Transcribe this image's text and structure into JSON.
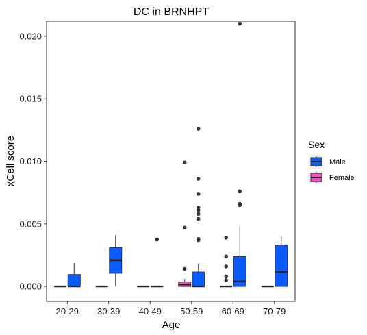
{
  "chart_data": {
    "type": "box",
    "title": "DC in BRNHPT",
    "xlabel": "Age",
    "ylabel": "xCell score",
    "categories": [
      "20-29",
      "30-39",
      "40-49",
      "50-59",
      "60-69",
      "70-79"
    ],
    "ylim": [
      -0.0012,
      0.0212
    ],
    "yticks": [
      0.0,
      0.005,
      0.01,
      0.015,
      0.02
    ],
    "ytick_labels": [
      "0.000",
      "0.005",
      "0.010",
      "0.015",
      "0.020"
    ],
    "grid": false,
    "legend": {
      "title": "Sex",
      "position": "right"
    },
    "series": [
      {
        "name": "Male",
        "color": "#0a5cff",
        "boxes": [
          {
            "category": "20-29",
            "whislo": 0.0,
            "q1": 0.0,
            "med": 0.0,
            "q3": 0.00095,
            "whishi": 0.00185,
            "fliers": []
          },
          {
            "category": "30-39",
            "whislo": 0.0,
            "q1": 0.00105,
            "med": 0.0021,
            "q3": 0.0031,
            "whishi": 0.0041,
            "fliers": []
          },
          {
            "category": "40-49",
            "whislo": 0.0,
            "q1": 0.0,
            "med": 0.0,
            "q3": 0.0,
            "whishi": 0.0,
            "fliers": [
              0.00375
            ]
          },
          {
            "category": "50-59",
            "whislo": 0.0,
            "q1": 0.0,
            "med": 0.0,
            "q3": 0.00115,
            "whishi": 0.0018,
            "fliers": [
              0.0126,
              0.0086,
              0.0074,
              0.0063,
              0.0061,
              0.0058,
              0.0054,
              0.0038,
              0.0037
            ]
          },
          {
            "category": "60-69",
            "whislo": 0.0,
            "q1": 0.0,
            "med": 0.0004,
            "q3": 0.0024,
            "whishi": 0.0049,
            "fliers": [
              0.021,
              0.0076,
              0.0066,
              0.0065
            ]
          },
          {
            "category": "70-79",
            "whislo": 0.0,
            "q1": 0.0,
            "med": 0.00115,
            "q3": 0.0033,
            "whishi": 0.004,
            "fliers": []
          }
        ]
      },
      {
        "name": "Female",
        "color": "#ff4fc8",
        "boxes": [
          {
            "category": "20-29",
            "whislo": 0.0,
            "q1": 0.0,
            "med": 0.0,
            "q3": 0.0,
            "whishi": 0.0,
            "fliers": []
          },
          {
            "category": "30-39",
            "whislo": 0.0,
            "q1": 0.0,
            "med": 0.0,
            "q3": 0.0,
            "whishi": 0.0,
            "fliers": []
          },
          {
            "category": "40-49",
            "whislo": 0.0,
            "q1": 0.0,
            "med": 0.0,
            "q3": 0.0,
            "whishi": 0.0,
            "fliers": []
          },
          {
            "category": "50-59",
            "whislo": 0.0,
            "q1": 0.0,
            "med": 0.00015,
            "q3": 0.00035,
            "whishi": 0.0006,
            "fliers": [
              0.0099,
              0.0047,
              0.0014
            ]
          },
          {
            "category": "60-69",
            "whislo": 0.0,
            "q1": 0.0,
            "med": 0.0,
            "q3": 0.0,
            "whishi": 0.0,
            "fliers": [
              0.0039,
              0.0024,
              0.0016,
              0.0008,
              0.0005
            ]
          },
          {
            "category": "70-79",
            "whislo": 0.0,
            "q1": 0.0,
            "med": 0.0,
            "q3": 0.0,
            "whishi": 0.0,
            "fliers": []
          }
        ]
      }
    ]
  }
}
